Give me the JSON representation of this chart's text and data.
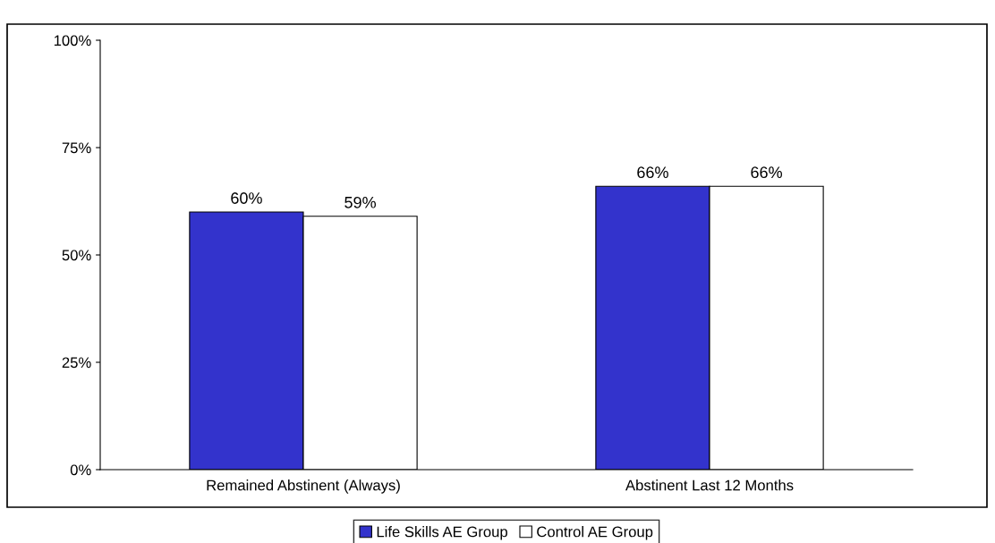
{
  "chart_data": {
    "type": "bar",
    "categories": [
      "Remained Abstinent (Always)",
      "Abstinent Last 12 Months"
    ],
    "series": [
      {
        "name": "Life Skills AE Group",
        "color": "#3333cc",
        "values": [
          60,
          66
        ]
      },
      {
        "name": "Control AE Group",
        "color": "#ffffff",
        "values": [
          59,
          66
        ]
      }
    ],
    "ylim": [
      0,
      100
    ],
    "yticks": [
      {
        "value": 0,
        "label": "0%"
      },
      {
        "value": 25,
        "label": "25%"
      },
      {
        "value": 50,
        "label": "50%"
      },
      {
        "value": 75,
        "label": "75%"
      },
      {
        "value": 100,
        "label": "100%"
      }
    ],
    "value_labels": [
      [
        "60%",
        "66%"
      ],
      [
        "59%",
        "66%"
      ]
    ],
    "legend": "bottom",
    "grid": false
  }
}
